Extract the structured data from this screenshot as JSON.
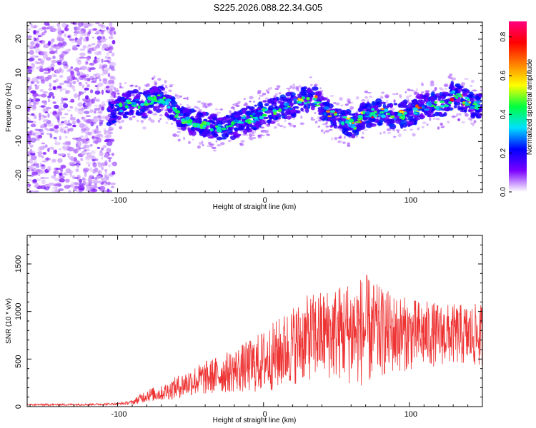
{
  "title": "S225.2026.088.22.34.G05",
  "chart_data": [
    {
      "type": "heatmap",
      "xlabel": "Height of straight line (km)",
      "ylabel": "Frequency (Hz)",
      "xlim": [
        -162,
        150
      ],
      "ylim": [
        -25,
        25
      ],
      "xticks": [
        -100,
        0,
        100
      ],
      "yticks": [
        -20,
        -10,
        0,
        10,
        20
      ],
      "xtick_labels": [
        "-100",
        "0",
        "100"
      ],
      "ytick_labels": [
        "-20",
        "-10",
        "0",
        "10",
        "20"
      ],
      "noise_region_x": [
        -162,
        -102
      ],
      "ridge": {
        "x": [
          -106,
          -96,
          -88,
          -82,
          -76,
          -70,
          -64,
          -58,
          -50,
          -42,
          -36,
          -30,
          -24,
          -18,
          -12,
          -6,
          0,
          6,
          12,
          18,
          24,
          30,
          34,
          40,
          46,
          52,
          58,
          62,
          66,
          72,
          78,
          84,
          90,
          96,
          102,
          108,
          114,
          120,
          126,
          130,
          136,
          142,
          148
        ],
        "freq_hz": [
          -1.5,
          0.5,
          1.5,
          0.5,
          2.5,
          2.5,
          0.5,
          -3.0,
          -4.0,
          -5.0,
          -5.5,
          -6.0,
          -6.0,
          -5.0,
          -3.5,
          -3.0,
          -1.5,
          -1.0,
          -0.5,
          0.5,
          1.5,
          2.5,
          3.0,
          0.0,
          -2.0,
          -3.5,
          -4.5,
          -5.5,
          -3.0,
          -2.0,
          -1.5,
          -1.5,
          -2.5,
          -2.0,
          -1.5,
          0.0,
          0.5,
          0.5,
          1.5,
          4.0,
          2.5,
          1.0,
          0.5
        ]
      },
      "colorbar": {
        "label": "Normalized spectral amplitude",
        "range": [
          0.0,
          0.88
        ],
        "ticks": [
          0.0,
          0.2,
          0.4,
          0.6,
          0.8
        ],
        "tick_labels": [
          "0.0",
          "0.2",
          "0.4",
          "0.6",
          "0.8"
        ],
        "colors": [
          "#ffffff",
          "#7a00ff",
          "#0000ff",
          "#00e0ff",
          "#00ff40",
          "#ffff00",
          "#ff8000",
          "#ff0000",
          "#ff0080"
        ]
      }
    },
    {
      "type": "line",
      "xlabel": "Height of straight line (km)",
      "ylabel": "SNR (10 * v/v)",
      "xlim": [
        -162,
        150
      ],
      "ylim": [
        0,
        1800
      ],
      "xticks": [
        -100,
        0,
        100
      ],
      "yticks": [
        0,
        500,
        1000,
        1500
      ],
      "xtick_labels": [
        "-100",
        "0",
        "100"
      ],
      "ytick_labels": [
        "0",
        "500",
        "1000",
        "1500"
      ],
      "color": "#ee3333",
      "series": [
        {
          "name": "SNR",
          "x": [
            -162,
            -140,
            -120,
            -100,
            -90,
            -85,
            -80,
            -70,
            -60,
            -50,
            -40,
            -30,
            -20,
            -10,
            0,
            10,
            20,
            30,
            40,
            50,
            60,
            70,
            80,
            90,
            100,
            110,
            120,
            130,
            140,
            150
          ],
          "mean": [
            20,
            20,
            22,
            28,
            45,
            80,
            120,
            140,
            200,
            260,
            300,
            340,
            380,
            420,
            480,
            550,
            650,
            720,
            760,
            780,
            790,
            800,
            780,
            770,
            760,
            760,
            760,
            760,
            750,
            740
          ],
          "amp": [
            10,
            10,
            10,
            12,
            20,
            50,
            70,
            80,
            120,
            150,
            180,
            200,
            230,
            280,
            330,
            380,
            420,
            450,
            470,
            500,
            560,
            600,
            480,
            420,
            380,
            360,
            330,
            320,
            330,
            340
          ]
        }
      ]
    }
  ]
}
